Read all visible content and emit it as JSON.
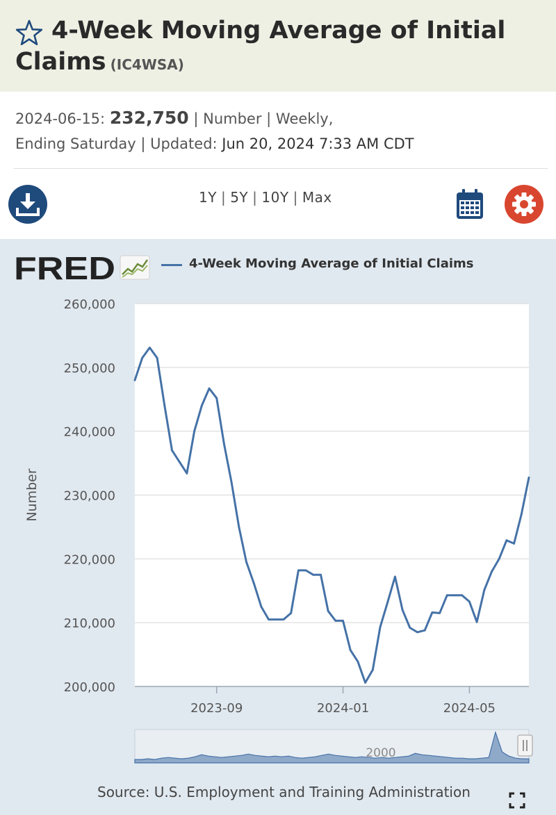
{
  "header": {
    "title": "4-Week Moving Average of Initial Claims",
    "series_id": "(IC4WSA)"
  },
  "meta": {
    "date": "2024-06-15:",
    "value": "232,750",
    "separator": " | ",
    "units": "Number",
    "frequency": "Weekly,",
    "frequency2": "Ending Saturday",
    "updated_label": "Updated:",
    "updated_value": "Jun 20, 2024 7:33 AM CDT"
  },
  "toolbar": {
    "ranges": [
      "1Y",
      "5Y",
      "10Y",
      "Max"
    ],
    "download_icon": "download-icon",
    "calendar_icon": "calendar-icon",
    "settings_icon": "gear-icon"
  },
  "logo": {
    "text": "FRED"
  },
  "legend": {
    "label": "4-Week Moving Average of Initial Claims"
  },
  "source": "Source: U.S. Employment and Training Administration",
  "colors": {
    "series": "#4572a7",
    "brand_blue": "#1f4a7c",
    "settings_red": "#d9462f",
    "panel_bg": "#e1e9f0",
    "title_bg": "#eff0e4"
  },
  "chart_data": {
    "type": "line",
    "title": "4-Week Moving Average of Initial Claims",
    "ylabel": "Number",
    "xlabel": "",
    "ylim": [
      200000,
      260000
    ],
    "yticks": [
      200000,
      210000,
      220000,
      230000,
      240000,
      250000,
      260000
    ],
    "ytick_labels": [
      "200,000",
      "210,000",
      "220,000",
      "230,000",
      "240,000",
      "250,000",
      "260,000"
    ],
    "x_start": "2023-06-17",
    "x_step_days": 7,
    "xticks": [
      {
        "label": "2023-09",
        "week_index": 11
      },
      {
        "label": "2024-01",
        "week_index": 28
      },
      {
        "label": "2024-05",
        "week_index": 45
      }
    ],
    "grid": true,
    "series": [
      {
        "name": "4-Week Moving Average of Initial Claims",
        "values": [
          248000,
          251500,
          253100,
          251500,
          244000,
          237000,
          235200,
          233400,
          240000,
          244000,
          246700,
          245200,
          238000,
          232000,
          225000,
          219500,
          216200,
          212500,
          210500,
          210500,
          210500,
          211500,
          218200,
          218200,
          217500,
          217500,
          211800,
          210300,
          210300,
          205700,
          203900,
          200600,
          202600,
          209300,
          213200,
          217200,
          212000,
          209200,
          208500,
          208800,
          211600,
          211500,
          214300,
          214300,
          214300,
          213300,
          210100,
          215100,
          218000,
          220000,
          222900,
          222400,
          227000,
          232750
        ]
      }
    ],
    "navigator": {
      "label": "2000",
      "values": [
        5,
        5,
        6,
        5,
        7,
        8,
        7,
        6,
        7,
        9,
        12,
        10,
        9,
        8,
        9,
        10,
        11,
        13,
        11,
        10,
        9,
        10,
        9,
        10,
        8,
        7,
        8,
        9,
        11,
        13,
        11,
        10,
        9,
        8,
        9,
        8,
        7,
        8,
        7,
        8,
        9,
        10,
        14,
        12,
        11,
        10,
        9,
        8,
        7,
        7,
        6,
        6,
        7,
        8,
        45,
        16,
        10,
        7,
        6,
        6
      ]
    }
  }
}
